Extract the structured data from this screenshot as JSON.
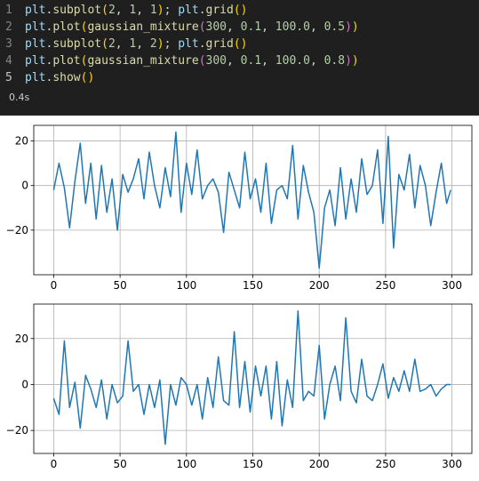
{
  "editor": {
    "lines": [
      {
        "n": "1",
        "tokens": [
          [
            "var",
            "plt"
          ],
          [
            "punc",
            "."
          ],
          [
            "fn",
            "subplot"
          ],
          [
            "p1",
            "("
          ],
          [
            "num",
            "2"
          ],
          [
            "punc",
            ", "
          ],
          [
            "num",
            "1"
          ],
          [
            "punc",
            ", "
          ],
          [
            "num",
            "1"
          ],
          [
            "p1",
            ")"
          ],
          [
            "punc",
            "; "
          ],
          [
            "var",
            "plt"
          ],
          [
            "punc",
            "."
          ],
          [
            "fn",
            "grid"
          ],
          [
            "p1",
            "("
          ],
          [
            "p1",
            ")"
          ]
        ]
      },
      {
        "n": "2",
        "tokens": [
          [
            "var",
            "plt"
          ],
          [
            "punc",
            "."
          ],
          [
            "fn",
            "plot"
          ],
          [
            "p1",
            "("
          ],
          [
            "fn",
            "gaussian_mixture"
          ],
          [
            "p2",
            "("
          ],
          [
            "num",
            "300"
          ],
          [
            "punc",
            ", "
          ],
          [
            "num",
            "0.1"
          ],
          [
            "punc",
            ", "
          ],
          [
            "num",
            "100.0"
          ],
          [
            "punc",
            ", "
          ],
          [
            "num",
            "0.5"
          ],
          [
            "p2",
            ")"
          ],
          [
            "p1",
            ")"
          ]
        ]
      },
      {
        "n": "3",
        "tokens": [
          [
            "var",
            "plt"
          ],
          [
            "punc",
            "."
          ],
          [
            "fn",
            "subplot"
          ],
          [
            "p1",
            "("
          ],
          [
            "num",
            "2"
          ],
          [
            "punc",
            ", "
          ],
          [
            "num",
            "1"
          ],
          [
            "punc",
            ", "
          ],
          [
            "num",
            "2"
          ],
          [
            "p1",
            ")"
          ],
          [
            "punc",
            "; "
          ],
          [
            "var",
            "plt"
          ],
          [
            "punc",
            "."
          ],
          [
            "fn",
            "grid"
          ],
          [
            "p1",
            "("
          ],
          [
            "p1",
            ")"
          ]
        ]
      },
      {
        "n": "4",
        "tokens": [
          [
            "var",
            "plt"
          ],
          [
            "punc",
            "."
          ],
          [
            "fn",
            "plot"
          ],
          [
            "p1",
            "("
          ],
          [
            "fn",
            "gaussian_mixture"
          ],
          [
            "p2",
            "("
          ],
          [
            "num",
            "300"
          ],
          [
            "punc",
            ", "
          ],
          [
            "num",
            "0.1"
          ],
          [
            "punc",
            ", "
          ],
          [
            "num",
            "100.0"
          ],
          [
            "punc",
            ", "
          ],
          [
            "num",
            "0.8"
          ],
          [
            "p2",
            ")"
          ],
          [
            "p1",
            ")"
          ]
        ]
      },
      {
        "n": "5",
        "tokens": [
          [
            "var",
            "plt"
          ],
          [
            "punc",
            "."
          ],
          [
            "fn",
            "show"
          ],
          [
            "p1",
            "("
          ],
          [
            "p1",
            ")"
          ]
        ]
      }
    ],
    "exec_time": "0.4s"
  },
  "colors": {
    "line": "#1f77b4",
    "grid": "#b0b0b0",
    "editor_bg": "#1f1f1f"
  },
  "chart_data": [
    {
      "type": "line",
      "xlim": [
        -15,
        315
      ],
      "ylim": [
        -40,
        27
      ],
      "xticks": [
        0,
        50,
        100,
        150,
        200,
        250,
        300
      ],
      "yticks": [
        -20,
        0,
        20
      ],
      "grid": true,
      "x": [
        0,
        4,
        8,
        12,
        16,
        20,
        24,
        28,
        32,
        36,
        40,
        44,
        48,
        52,
        56,
        60,
        64,
        68,
        72,
        76,
        80,
        84,
        88,
        92,
        96,
        100,
        104,
        108,
        112,
        116,
        120,
        124,
        128,
        132,
        136,
        140,
        144,
        148,
        152,
        156,
        160,
        164,
        168,
        172,
        176,
        180,
        184,
        188,
        192,
        196,
        200,
        204,
        208,
        212,
        216,
        220,
        224,
        228,
        232,
        236,
        240,
        244,
        248,
        252,
        256,
        260,
        264,
        268,
        272,
        276,
        280,
        284,
        288,
        292,
        296,
        299
      ],
      "y": [
        -2,
        10,
        -1,
        -19,
        2,
        19,
        -8,
        10,
        -15,
        9,
        -12,
        3,
        -20,
        5,
        -3,
        3,
        12,
        -6,
        15,
        0,
        -10,
        8,
        -5,
        24,
        -12,
        10,
        -4,
        16,
        -6,
        0,
        3,
        -3,
        -21,
        6,
        -2,
        -10,
        15,
        -6,
        3,
        -12,
        10,
        -17,
        -2,
        0,
        -6,
        18,
        -15,
        9,
        -3,
        -12,
        -37,
        -10,
        -2,
        -18,
        8,
        -15,
        3,
        -12,
        12,
        -4,
        0,
        16,
        -17,
        22,
        -28,
        5,
        -2,
        14,
        -10,
        9,
        0,
        -18,
        -3,
        10,
        -8,
        -2
      ]
    },
    {
      "type": "line",
      "xlim": [
        -15,
        315
      ],
      "ylim": [
        -30,
        35
      ],
      "xticks": [
        0,
        50,
        100,
        150,
        200,
        250,
        300
      ],
      "yticks": [
        -20,
        0,
        20
      ],
      "grid": true,
      "x": [
        0,
        4,
        8,
        12,
        16,
        20,
        24,
        28,
        32,
        36,
        40,
        44,
        48,
        52,
        56,
        60,
        64,
        68,
        72,
        76,
        80,
        84,
        88,
        92,
        96,
        100,
        104,
        108,
        112,
        116,
        120,
        124,
        128,
        132,
        136,
        140,
        144,
        148,
        152,
        156,
        160,
        164,
        168,
        172,
        176,
        180,
        184,
        188,
        192,
        196,
        200,
        204,
        208,
        212,
        216,
        220,
        224,
        228,
        232,
        236,
        240,
        244,
        248,
        252,
        256,
        260,
        264,
        268,
        272,
        276,
        280,
        284,
        288,
        292,
        296,
        299
      ],
      "y": [
        -6,
        -13,
        19,
        -10,
        1,
        -19,
        4,
        -2,
        -10,
        2,
        -15,
        0,
        -8,
        -5,
        19,
        -3,
        0,
        -13,
        0,
        -10,
        2,
        -26,
        0,
        -9,
        3,
        0,
        -9,
        0,
        -15,
        3,
        -10,
        12,
        -7,
        -9,
        23,
        -10,
        10,
        -12,
        8,
        -5,
        8,
        -15,
        10,
        -18,
        2,
        -10,
        32,
        -7,
        -3,
        -5,
        17,
        -15,
        0,
        8,
        -7,
        29,
        -3,
        -8,
        11,
        -5,
        -7,
        0,
        9,
        -6,
        3,
        -3,
        6,
        -3,
        11,
        -3,
        -2,
        0,
        -5,
        -2,
        0,
        0
      ]
    }
  ]
}
